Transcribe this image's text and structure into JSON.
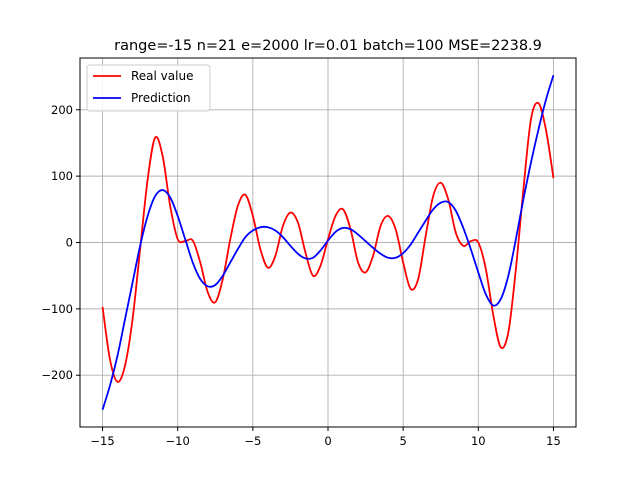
{
  "chart_data": {
    "type": "line",
    "title": "range=-15 n=21 e=2000 lr=0.01 batch=100 MSE=2238.9",
    "xlabel": "",
    "ylabel": "",
    "xlim": [
      -16.5,
      16.5
    ],
    "ylim": [
      -278,
      278
    ],
    "x_ticks": [
      -15,
      -10,
      -5,
      0,
      5,
      10,
      15
    ],
    "x_tick_labels": [
      "−15",
      "−10",
      "−5",
      "0",
      "5",
      "10",
      "15"
    ],
    "y_ticks": [
      -200,
      -100,
      0,
      100,
      200
    ],
    "y_tick_labels": [
      "−200",
      "−100",
      "0",
      "100",
      "200"
    ],
    "grid": true,
    "legend_position": "top-left",
    "series": [
      {
        "name": "Real value",
        "color": "#ff0000",
        "points": [
          [
            -15.0,
            -97
          ],
          [
            -14.5,
            -177
          ],
          [
            -14.0,
            -210
          ],
          [
            -13.5,
            -185
          ],
          [
            -13.0,
            -115
          ],
          [
            -12.5,
            -10
          ],
          [
            -12.0,
            95
          ],
          [
            -11.5,
            158
          ],
          [
            -11.0,
            130
          ],
          [
            -10.5,
            55
          ],
          [
            -10.0,
            5
          ],
          [
            -9.5,
            2
          ],
          [
            -9.0,
            3
          ],
          [
            -8.5,
            -30
          ],
          [
            -8.0,
            -75
          ],
          [
            -7.5,
            -90
          ],
          [
            -7.0,
            -55
          ],
          [
            -6.5,
            5
          ],
          [
            -6.0,
            55
          ],
          [
            -5.5,
            72
          ],
          [
            -5.0,
            40
          ],
          [
            -4.5,
            -10
          ],
          [
            -4.0,
            -38
          ],
          [
            -3.5,
            -20
          ],
          [
            -3.0,
            25
          ],
          [
            -2.5,
            45
          ],
          [
            -2.0,
            30
          ],
          [
            -1.5,
            -15
          ],
          [
            -1.0,
            -50
          ],
          [
            -0.5,
            -35
          ],
          [
            0.0,
            5
          ],
          [
            0.5,
            40
          ],
          [
            1.0,
            50
          ],
          [
            1.5,
            20
          ],
          [
            2.0,
            -30
          ],
          [
            2.5,
            -45
          ],
          [
            3.0,
            -20
          ],
          [
            3.5,
            25
          ],
          [
            4.0,
            40
          ],
          [
            4.5,
            20
          ],
          [
            5.0,
            -30
          ],
          [
            5.5,
            -70
          ],
          [
            6.0,
            -55
          ],
          [
            6.5,
            10
          ],
          [
            7.0,
            70
          ],
          [
            7.5,
            90
          ],
          [
            8.0,
            65
          ],
          [
            8.5,
            15
          ],
          [
            9.0,
            -5
          ],
          [
            9.5,
            2
          ],
          [
            10.0,
            0
          ],
          [
            10.5,
            -40
          ],
          [
            11.0,
            -110
          ],
          [
            11.5,
            -158
          ],
          [
            12.0,
            -135
          ],
          [
            12.5,
            -40
          ],
          [
            13.0,
            80
          ],
          [
            13.5,
            185
          ],
          [
            14.0,
            210
          ],
          [
            14.5,
            170
          ],
          [
            15.0,
            97
          ]
        ]
      },
      {
        "name": "Prediction",
        "color": "#0000ff",
        "points": [
          [
            -15.0,
            -252
          ],
          [
            -14.5,
            -215
          ],
          [
            -14.0,
            -170
          ],
          [
            -13.5,
            -115
          ],
          [
            -13.0,
            -60
          ],
          [
            -12.5,
            -5
          ],
          [
            -12.0,
            40
          ],
          [
            -11.5,
            70
          ],
          [
            -11.0,
            79
          ],
          [
            -10.5,
            68
          ],
          [
            -10.0,
            40
          ],
          [
            -9.5,
            5
          ],
          [
            -9.0,
            -30
          ],
          [
            -8.5,
            -55
          ],
          [
            -8.0,
            -66
          ],
          [
            -7.5,
            -64
          ],
          [
            -7.0,
            -50
          ],
          [
            -6.5,
            -30
          ],
          [
            -6.0,
            -10
          ],
          [
            -5.5,
            8
          ],
          [
            -5.0,
            18
          ],
          [
            -4.5,
            23
          ],
          [
            -4.0,
            23
          ],
          [
            -3.5,
            18
          ],
          [
            -3.0,
            8
          ],
          [
            -2.5,
            -5
          ],
          [
            -2.0,
            -17
          ],
          [
            -1.5,
            -24
          ],
          [
            -1.0,
            -23
          ],
          [
            -0.5,
            -12
          ],
          [
            0.0,
            3
          ],
          [
            0.5,
            16
          ],
          [
            1.0,
            22
          ],
          [
            1.5,
            20
          ],
          [
            2.0,
            12
          ],
          [
            2.5,
            2
          ],
          [
            3.0,
            -8
          ],
          [
            3.5,
            -17
          ],
          [
            4.0,
            -23
          ],
          [
            4.5,
            -23
          ],
          [
            5.0,
            -16
          ],
          [
            5.5,
            -3
          ],
          [
            6.0,
            15
          ],
          [
            6.5,
            33
          ],
          [
            7.0,
            50
          ],
          [
            7.5,
            60
          ],
          [
            8.0,
            61
          ],
          [
            8.5,
            48
          ],
          [
            9.0,
            22
          ],
          [
            9.5,
            -10
          ],
          [
            10.0,
            -45
          ],
          [
            10.5,
            -78
          ],
          [
            11.0,
            -95
          ],
          [
            11.5,
            -85
          ],
          [
            12.0,
            -50
          ],
          [
            12.5,
            5
          ],
          [
            13.0,
            65
          ],
          [
            13.5,
            120
          ],
          [
            14.0,
            170
          ],
          [
            14.5,
            215
          ],
          [
            15.0,
            252
          ]
        ]
      }
    ]
  }
}
